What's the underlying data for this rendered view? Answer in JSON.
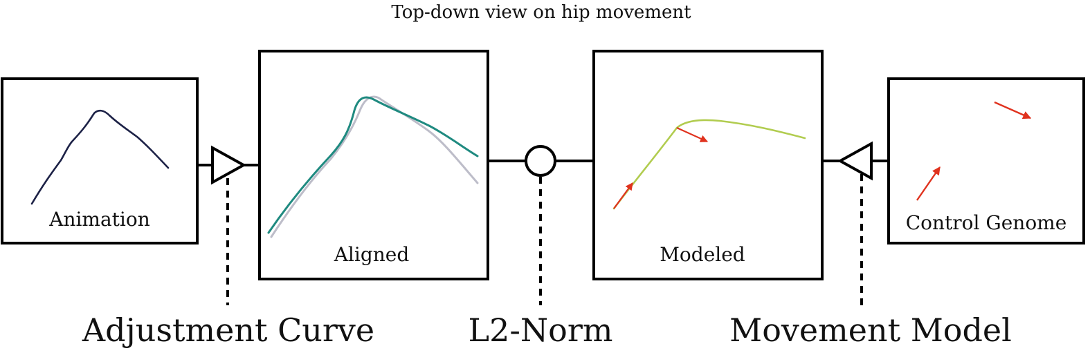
{
  "title": "Top-down view on hip movement",
  "boxes": {
    "animation": {
      "label": "Animation"
    },
    "aligned": {
      "label": "Aligned"
    },
    "modeled": {
      "label": "Modeled"
    },
    "control_genome": {
      "label": "Control Genome"
    }
  },
  "operators": {
    "adjustment_curve": {
      "label": "Adjustment Curve",
      "symbol": "triangle-right"
    },
    "l2_norm": {
      "label": "L2-Norm",
      "symbol": "circle"
    },
    "movement_model": {
      "label": "Movement Model",
      "symbol": "triangle-left"
    }
  },
  "colors": {
    "outline": "#000000",
    "animation_curve": "#1c2146",
    "aligned_curve": "#1f8a80",
    "reference_curve": "#bdbdc9",
    "modeled_curve": "#b1cc4f",
    "control_arrows": "#e0321e"
  }
}
